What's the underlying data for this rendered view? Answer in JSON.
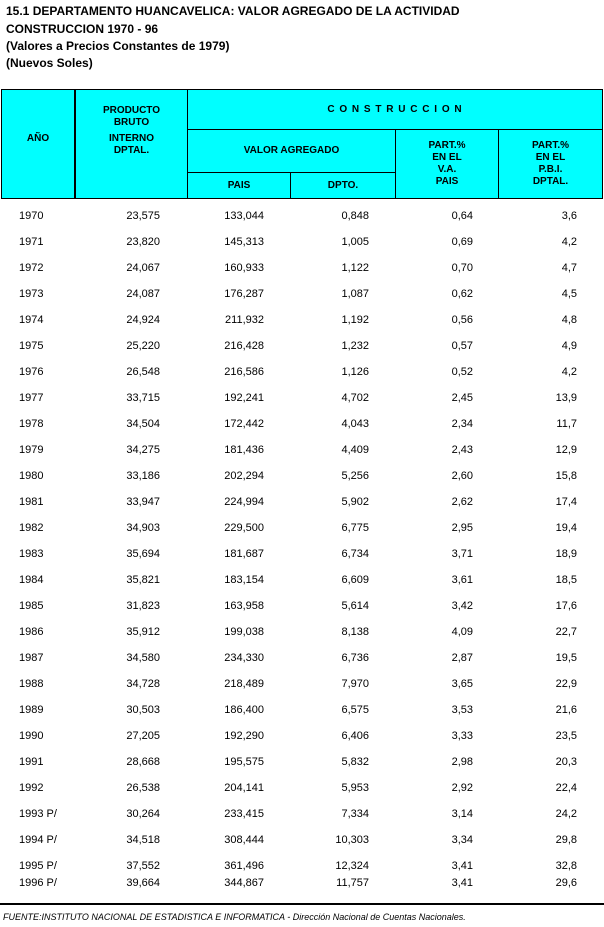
{
  "header": {
    "title": "15.1  DEPARTAMENTO HUANCAVELICA: VALOR AGREGADO DE LA ACTIVIDAD",
    "subtitle": "CONSTRUCCION 1970 - 96",
    "notes": [
      "(Valores a Precios Constantes de 1979)",
      "(Nuevos Soles)"
    ]
  },
  "table": {
    "columns": {
      "year": "AÑO",
      "pbi": [
        "PRODUCTO",
        "BRUTO",
        "INTERNO",
        "DPTAL."
      ],
      "construccion": "C O N S T R U C C I O N",
      "valor_agregado": "VALOR AGREGADO",
      "pais": "PAIS",
      "dpto": "DPTO.",
      "part_va": [
        "PART.%",
        "EN EL",
        "V.A.",
        "PAIS"
      ],
      "part_pbi": [
        "PART.%",
        "EN EL",
        "P.B.I.",
        "DPTAL."
      ]
    },
    "rows": [
      [
        "1970",
        "23,575",
        "133,044",
        "0,848",
        "0,64",
        "3,6"
      ],
      [
        "1971",
        "23,820",
        "145,313",
        "1,005",
        "0,69",
        "4,2"
      ],
      [
        "1972",
        "24,067",
        "160,933",
        "1,122",
        "0,70",
        "4,7"
      ],
      [
        "1973",
        "24,087",
        "176,287",
        "1,087",
        "0,62",
        "4,5"
      ],
      [
        "1974",
        "24,924",
        "211,932",
        "1,192",
        "0,56",
        "4,8"
      ],
      [
        "1975",
        "25,220",
        "216,428",
        "1,232",
        "0,57",
        "4,9"
      ],
      [
        "1976",
        "26,548",
        "216,586",
        "1,126",
        "0,52",
        "4,2"
      ],
      [
        "1977",
        "33,715",
        "192,241",
        "4,702",
        "2,45",
        "13,9"
      ],
      [
        "1978",
        "34,504",
        "172,442",
        "4,043",
        "2,34",
        "11,7"
      ],
      [
        "1979",
        "34,275",
        "181,436",
        "4,409",
        "2,43",
        "12,9"
      ],
      [
        "1980",
        "33,186",
        "202,294",
        "5,256",
        "2,60",
        "15,8"
      ],
      [
        "1981",
        "33,947",
        "224,994",
        "5,902",
        "2,62",
        "17,4"
      ],
      [
        "1982",
        "34,903",
        "229,500",
        "6,775",
        "2,95",
        "19,4"
      ],
      [
        "1983",
        "35,694",
        "181,687",
        "6,734",
        "3,71",
        "18,9"
      ],
      [
        "1984",
        "35,821",
        "183,154",
        "6,609",
        "3,61",
        "18,5"
      ],
      [
        "1985",
        "31,823",
        "163,958",
        "5,614",
        "3,42",
        "17,6"
      ],
      [
        "1986",
        "35,912",
        "199,038",
        "8,138",
        "4,09",
        "22,7"
      ],
      [
        "1987",
        "34,580",
        "234,330",
        "6,736",
        "2,87",
        "19,5"
      ],
      [
        "1988",
        "34,728",
        "218,489",
        "7,970",
        "3,65",
        "22,9"
      ],
      [
        "1989",
        "30,503",
        "186,400",
        "6,575",
        "3,53",
        "21,6"
      ],
      [
        "1990",
        "27,205",
        "192,290",
        "6,406",
        "3,33",
        "23,5"
      ],
      [
        "1991",
        "28,668",
        "195,575",
        "5,832",
        "2,98",
        "20,3"
      ],
      [
        "1992",
        "26,538",
        "204,141",
        "5,953",
        "2,92",
        "22,4"
      ],
      [
        "1993 P/",
        "30,264",
        "233,415",
        "7,334",
        "3,14",
        "24,2"
      ],
      [
        "1994 P/",
        "34,518",
        "308,444",
        "10,303",
        "3,34",
        "29,8"
      ],
      [
        "1995 P/",
        "37,552",
        "361,496",
        "12,324",
        "3,41",
        "32,8"
      ],
      [
        "1996 P/",
        "39,664",
        "344,867",
        "11,757",
        "3,41",
        "29,6"
      ]
    ]
  },
  "footer": {
    "source": "FUENTE:INSTITUTO NACIONAL DE ESTADISTICA E INFORMATICA - Dirección Nacional de Cuentas Nacionales."
  }
}
